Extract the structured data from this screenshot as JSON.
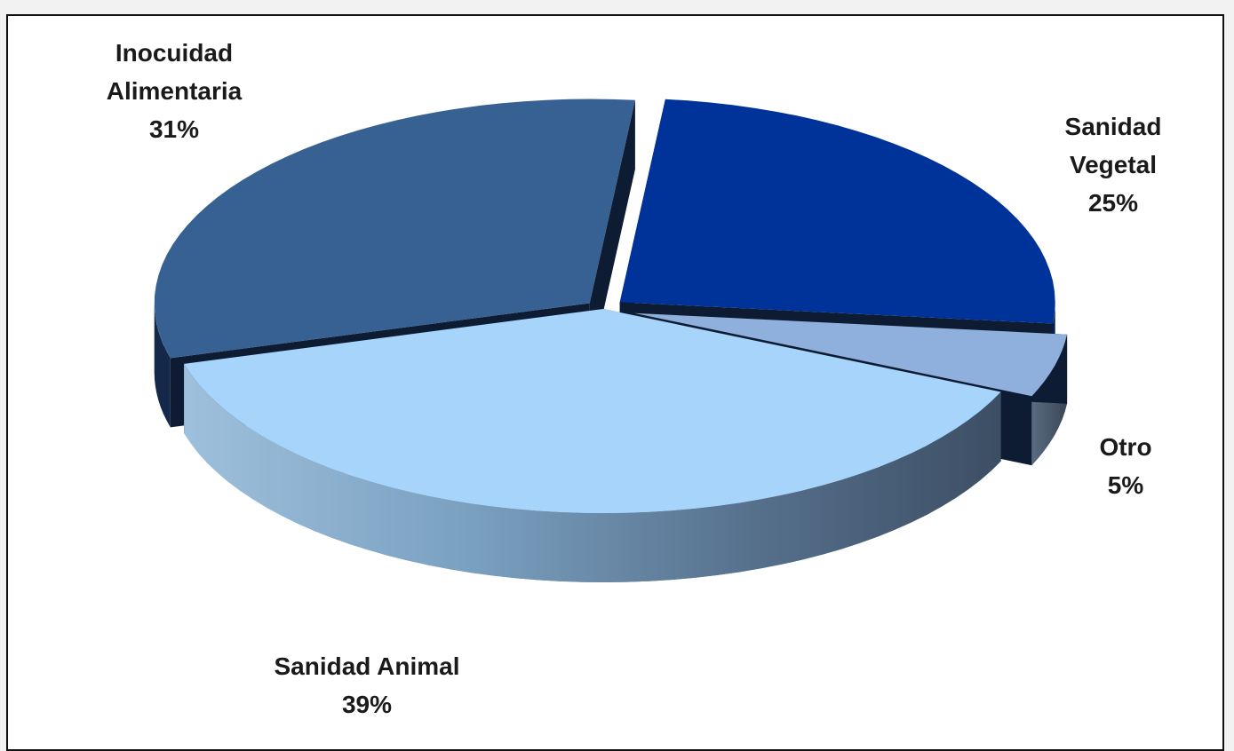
{
  "chart_data": {
    "type": "pie",
    "title": "",
    "style": "3d-exploded",
    "slices": [
      {
        "name_lines": [
          "Sanidad",
          "Vegetal"
        ],
        "label": "Sanidad Vegetal",
        "value": 25,
        "value_label": "25%",
        "color": "#003399"
      },
      {
        "name_lines": [
          "Otro"
        ],
        "label": "Otro",
        "value": 5,
        "value_label": "5%",
        "color": "#8fb0dc"
      },
      {
        "name_lines": [
          "Sanidad Animal"
        ],
        "label": "Sanidad Animal",
        "value": 39,
        "value_label": "39%",
        "color": "#a6d4fa"
      },
      {
        "name_lines": [
          "Inocuidad",
          "Alimentaria"
        ],
        "label": "Inocuidad Alimentaria",
        "value": 31,
        "value_label": "31%",
        "color": "#376192"
      }
    ]
  }
}
